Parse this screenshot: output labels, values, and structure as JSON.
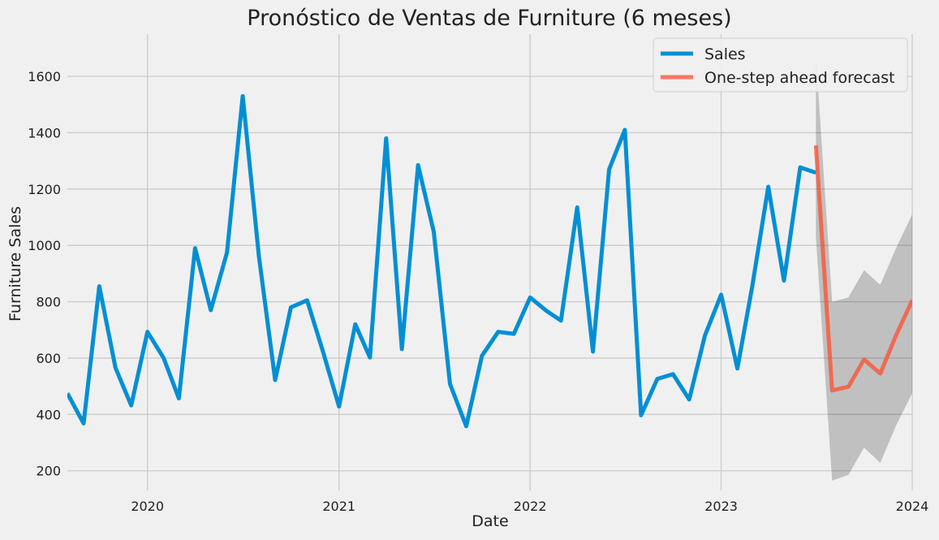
{
  "chart_data": {
    "type": "line",
    "title": "Pronóstico de Ventas de Furniture (6 meses)",
    "xlabel": "Date",
    "ylabel": "Furniture Sales",
    "xlim": [
      "2019-08-01",
      "2024-01-01"
    ],
    "ylim": [
      130,
      1750
    ],
    "x_ticks": [
      "2020",
      "2021",
      "2022",
      "2023",
      "2024"
    ],
    "y_ticks": [
      200,
      400,
      600,
      800,
      1000,
      1200,
      1400,
      1600
    ],
    "grid": true,
    "legend_position": "top-right",
    "series": [
      {
        "name": "Sales",
        "color": "#008fd5",
        "x": [
          "2019-08-01",
          "2019-09-01",
          "2019-10-01",
          "2019-11-01",
          "2019-12-01",
          "2020-01-01",
          "2020-02-01",
          "2020-03-01",
          "2020-04-01",
          "2020-05-01",
          "2020-06-01",
          "2020-07-01",
          "2020-08-01",
          "2020-09-01",
          "2020-10-01",
          "2020-11-01",
          "2020-12-01",
          "2021-01-01",
          "2021-02-01",
          "2021-03-01",
          "2021-04-01",
          "2021-05-01",
          "2021-06-01",
          "2021-07-01",
          "2021-08-01",
          "2021-09-01",
          "2021-10-01",
          "2021-11-01",
          "2021-12-01",
          "2022-01-01",
          "2022-02-01",
          "2022-03-01",
          "2022-04-01",
          "2022-05-01",
          "2022-06-01",
          "2022-07-01",
          "2022-08-01",
          "2022-09-01",
          "2022-10-01",
          "2022-11-01",
          "2022-12-01",
          "2023-01-01",
          "2023-02-01",
          "2023-03-01",
          "2023-04-01",
          "2023-05-01",
          "2023-06-01",
          "2023-07-01"
        ],
        "values": [
          475,
          368,
          855,
          565,
          432,
          693,
          600,
          457,
          990,
          770,
          975,
          1530,
          960,
          522,
          780,
          805,
          625,
          428,
          720,
          602,
          1380,
          632,
          1285,
          1048,
          508,
          358,
          608,
          693,
          686,
          815,
          768,
          733,
          1135,
          623,
          1270,
          1410,
          397,
          526,
          543,
          453,
          680,
          825,
          563,
          850,
          1208,
          875,
          1277,
          1258
        ]
      },
      {
        "name": "One-step ahead forecast",
        "color": "#fc4f30",
        "x": [
          "2023-07-01",
          "2023-08-01",
          "2023-09-01",
          "2023-10-01",
          "2023-11-01",
          "2023-12-01",
          "2024-01-01"
        ],
        "values": [
          1355,
          485,
          498,
          595,
          545,
          680,
          805
        ],
        "ci_lower": [
          1030,
          165,
          185,
          282,
          228,
          360,
          475
        ],
        "ci_upper": [
          1672,
          800,
          815,
          912,
          860,
          990,
          1110
        ]
      }
    ]
  }
}
